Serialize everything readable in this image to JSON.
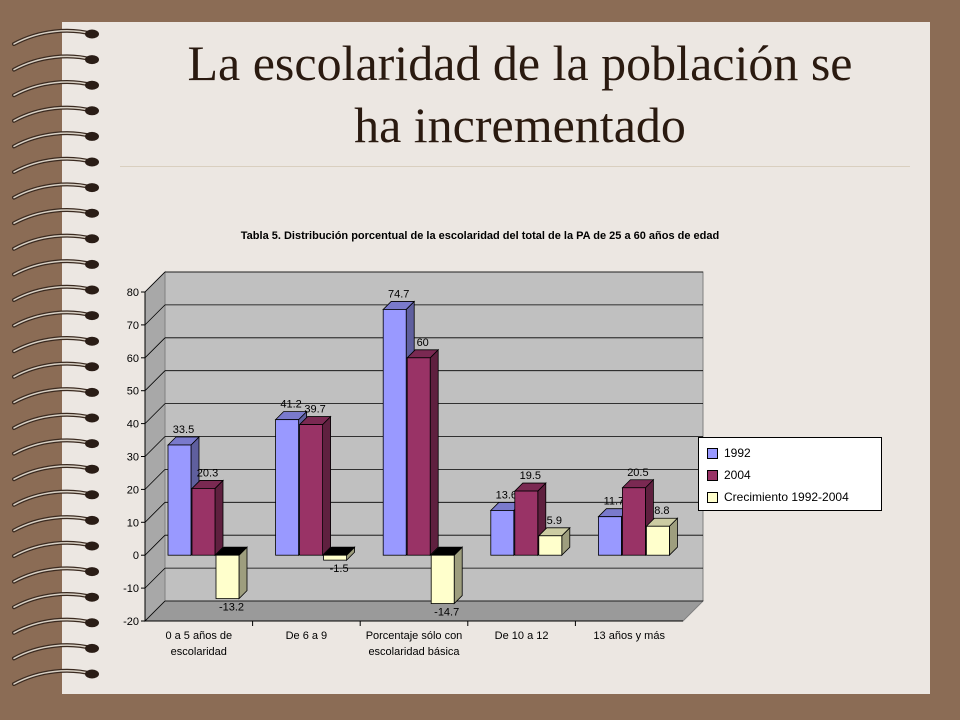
{
  "slide": {
    "title_line1": "La escolaridad de la población se",
    "title_line2": "ha incrementado"
  },
  "chart_data": {
    "type": "bar",
    "title": "Tabla 5. Distribución porcentual de la escolaridad del total de la PA de 25 a 60 años de edad",
    "categories": [
      [
        "0 a 5 años de",
        "escolaridad"
      ],
      [
        "De 6 a 9"
      ],
      [
        "Porcentaje sólo con",
        "escolaridad básica"
      ],
      [
        "De 10 a 12"
      ],
      [
        "13 años y más"
      ]
    ],
    "series": [
      {
        "name": "1992",
        "color": "#9999ff",
        "values": [
          33.5,
          41.2,
          74.7,
          13.6,
          11.7
        ],
        "labels": [
          "33.5",
          "41.2",
          "74.7",
          "13.6",
          "11.7"
        ]
      },
      {
        "name": "2004",
        "color": "#993366",
        "values": [
          20.3,
          39.7,
          60,
          19.5,
          20.5
        ],
        "labels": [
          "20.3",
          "39.7",
          "60",
          "19.5",
          "20.5"
        ]
      },
      {
        "name": "Crecimiento 1992-2004",
        "color": "#ffffcc",
        "values": [
          -13.2,
          -1.5,
          -14.7,
          5.9,
          8.8
        ],
        "labels": [
          "-13.2",
          "-1.5",
          "-14.7",
          "5.9",
          "8.8"
        ]
      }
    ],
    "ylim": [
      -20,
      80
    ],
    "yticks": [
      -20,
      -10,
      0,
      10,
      20,
      30,
      40,
      50,
      60,
      70,
      80
    ],
    "xlabel": "",
    "ylabel": "",
    "grid": true,
    "legend": "right"
  }
}
